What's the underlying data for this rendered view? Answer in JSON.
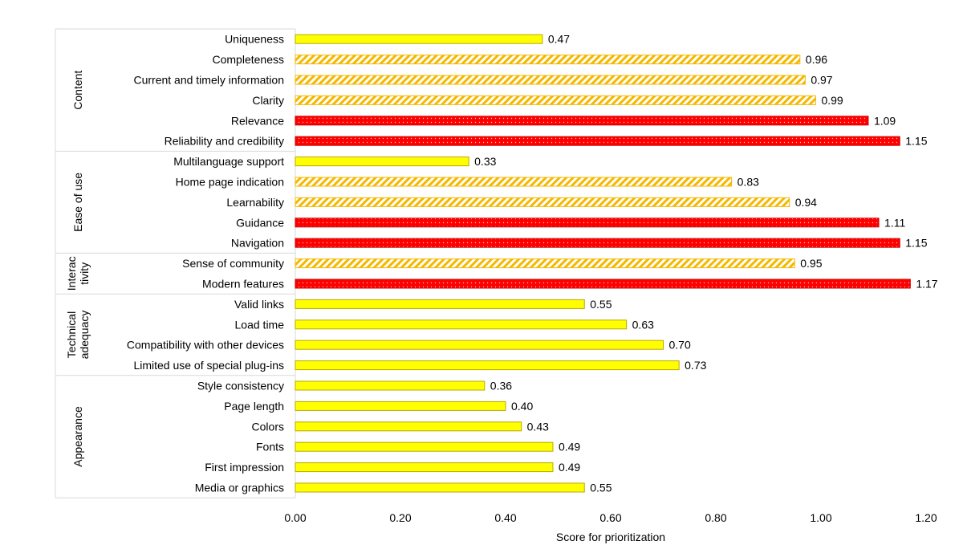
{
  "chart_data": {
    "type": "bar",
    "orientation": "horizontal",
    "xlabel": "Score for prioritization",
    "xlim": [
      0,
      1.2
    ],
    "xticks": [
      "0.00",
      "0.20",
      "0.40",
      "0.60",
      "0.80",
      "1.00",
      "1.20"
    ],
    "colors": {
      "low": "#ffff00",
      "medium": "#f5b800",
      "high": "#ff0000"
    },
    "groups": [
      {
        "name": "Content",
        "items": [
          {
            "label": "Uniqueness",
            "value": 0.47,
            "display": "0.47",
            "level": "low"
          },
          {
            "label": "Completeness",
            "value": 0.96,
            "display": "0.96",
            "level": "medium"
          },
          {
            "label": "Current and timely information",
            "value": 0.97,
            "display": "0.97",
            "level": "medium"
          },
          {
            "label": "Clarity",
            "value": 0.99,
            "display": "0.99",
            "level": "medium"
          },
          {
            "label": "Relevance",
            "value": 1.09,
            "display": "1.09",
            "level": "high"
          },
          {
            "label": "Reliability and credibility",
            "value": 1.15,
            "display": "1.15",
            "level": "high"
          }
        ]
      },
      {
        "name": "Ease of use",
        "items": [
          {
            "label": "Multilanguage support",
            "value": 0.33,
            "display": "0.33",
            "level": "low"
          },
          {
            "label": "Home page indication",
            "value": 0.83,
            "display": "0.83",
            "level": "medium"
          },
          {
            "label": "Learnability",
            "value": 0.94,
            "display": "0.94",
            "level": "medium"
          },
          {
            "label": "Guidance",
            "value": 1.11,
            "display": "1.11",
            "level": "high"
          },
          {
            "label": "Navigation",
            "value": 1.15,
            "display": "1.15",
            "level": "high"
          }
        ]
      },
      {
        "name": "Interac tivity",
        "name_lines": [
          "Interac",
          "tivity"
        ],
        "items": [
          {
            "label": "Sense of community",
            "value": 0.95,
            "display": "0.95",
            "level": "medium"
          },
          {
            "label": "Modern features",
            "value": 1.17,
            "display": "1.17",
            "level": "high"
          }
        ]
      },
      {
        "name": "Technical adequacy",
        "name_lines": [
          "Technical",
          "adequacy"
        ],
        "items": [
          {
            "label": "Valid links",
            "value": 0.55,
            "display": "0.55",
            "level": "low"
          },
          {
            "label": "Load time",
            "value": 0.63,
            "display": "0.63",
            "level": "low"
          },
          {
            "label": "Compatibility with other devices",
            "value": 0.7,
            "display": "0.70",
            "level": "low"
          },
          {
            "label": "Limited use of special plug-ins",
            "value": 0.73,
            "display": "0.73",
            "level": "low"
          }
        ]
      },
      {
        "name": "Appearance",
        "items": [
          {
            "label": "Style consistency",
            "value": 0.36,
            "display": "0.36",
            "level": "low"
          },
          {
            "label": "Page length",
            "value": 0.4,
            "display": "0.40",
            "level": "low"
          },
          {
            "label": "Colors",
            "value": 0.43,
            "display": "0.43",
            "level": "low"
          },
          {
            "label": "Fonts",
            "value": 0.49,
            "display": "0.49",
            "level": "low"
          },
          {
            "label": "First impression",
            "value": 0.49,
            "display": "0.49",
            "level": "low"
          },
          {
            "label": "Media or graphics",
            "value": 0.55,
            "display": "0.55",
            "level": "low"
          }
        ]
      }
    ]
  }
}
